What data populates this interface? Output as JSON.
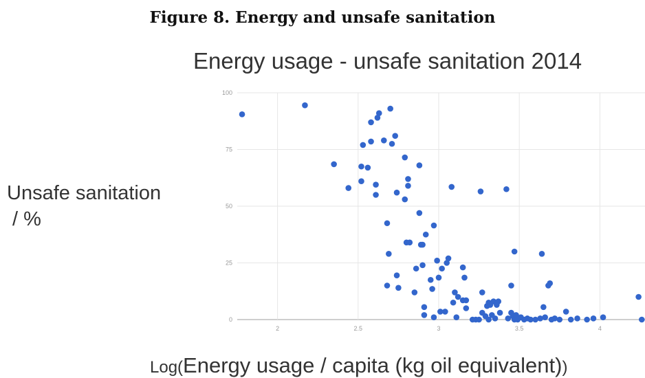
{
  "figure_caption": "Figure 8. Energy and unsafe sanitation",
  "chart_data": {
    "type": "scatter",
    "title": "Energy usage - unsafe sanitation 2014",
    "ylabel": "Unsafe sanitation\n / %",
    "xlabel_prefix": "Log(",
    "xlabel": "Energy usage / capita (kg oil equivalent)",
    "xlabel_suffix": ")",
    "xlim": [
      1.75,
      4.28
    ],
    "ylim": [
      0,
      100
    ],
    "xticks": [
      2,
      2.5,
      3,
      3.5,
      4
    ],
    "xtick_labels": [
      "2",
      "2.5",
      "3",
      "3.5",
      "4"
    ],
    "yticks": [
      0,
      25,
      50,
      75,
      100
    ],
    "ytick_labels": [
      "0",
      "25",
      "50",
      "75",
      "100"
    ],
    "grid": true,
    "legend": "none",
    "point_color": "#3366cc",
    "points": [
      [
        1.78,
        90.5
      ],
      [
        2.17,
        94.5
      ],
      [
        2.35,
        68.5
      ],
      [
        2.44,
        58
      ],
      [
        2.52,
        67.5
      ],
      [
        2.52,
        61
      ],
      [
        2.53,
        77
      ],
      [
        2.56,
        67
      ],
      [
        2.58,
        87
      ],
      [
        2.58,
        78.5
      ],
      [
        2.61,
        59.5
      ],
      [
        2.61,
        55
      ],
      [
        2.62,
        89
      ],
      [
        2.63,
        91
      ],
      [
        2.66,
        79
      ],
      [
        2.68,
        42.5
      ],
      [
        2.68,
        15
      ],
      [
        2.69,
        29
      ],
      [
        2.7,
        93
      ],
      [
        2.71,
        77.5
      ],
      [
        2.73,
        81
      ],
      [
        2.74,
        56
      ],
      [
        2.74,
        19.5
      ],
      [
        2.75,
        14
      ],
      [
        2.79,
        71.5
      ],
      [
        2.79,
        53
      ],
      [
        2.8,
        34
      ],
      [
        2.81,
        62
      ],
      [
        2.81,
        59
      ],
      [
        2.82,
        34
      ],
      [
        2.85,
        12
      ],
      [
        2.86,
        22.5
      ],
      [
        2.88,
        68
      ],
      [
        2.88,
        47
      ],
      [
        2.89,
        33
      ],
      [
        2.9,
        33
      ],
      [
        2.9,
        24
      ],
      [
        2.91,
        5.5
      ],
      [
        2.91,
        2
      ],
      [
        2.92,
        37.5
      ],
      [
        2.95,
        17.5
      ],
      [
        2.96,
        13.5
      ],
      [
        2.97,
        41.5
      ],
      [
        2.97,
        1
      ],
      [
        2.99,
        26
      ],
      [
        3.0,
        18.5
      ],
      [
        3.01,
        3.5
      ],
      [
        3.02,
        22.5
      ],
      [
        3.04,
        3.5
      ],
      [
        3.05,
        25
      ],
      [
        3.06,
        27
      ],
      [
        3.08,
        58.5
      ],
      [
        3.09,
        7.5
      ],
      [
        3.1,
        12
      ],
      [
        3.11,
        1
      ],
      [
        3.12,
        10
      ],
      [
        3.15,
        8.5
      ],
      [
        3.15,
        23
      ],
      [
        3.16,
        18.5
      ],
      [
        3.17,
        8.5
      ],
      [
        3.17,
        5
      ],
      [
        3.21,
        0
      ],
      [
        3.23,
        0
      ],
      [
        3.25,
        0
      ],
      [
        3.26,
        56.5
      ],
      [
        3.27,
        12
      ],
      [
        3.27,
        3
      ],
      [
        3.29,
        1.5
      ],
      [
        3.3,
        6
      ],
      [
        3.31,
        7.5
      ],
      [
        3.31,
        0
      ],
      [
        3.32,
        6.5
      ],
      [
        3.33,
        2
      ],
      [
        3.34,
        8
      ],
      [
        3.35,
        0.5
      ],
      [
        3.36,
        6.5
      ],
      [
        3.37,
        8
      ],
      [
        3.38,
        3
      ],
      [
        3.42,
        57.5
      ],
      [
        3.43,
        0.5
      ],
      [
        3.45,
        15
      ],
      [
        3.45,
        3
      ],
      [
        3.46,
        1.5
      ],
      [
        3.47,
        30
      ],
      [
        3.47,
        0
      ],
      [
        3.48,
        2
      ],
      [
        3.49,
        0
      ],
      [
        3.51,
        1
      ],
      [
        3.53,
        0
      ],
      [
        3.55,
        0.5
      ],
      [
        3.57,
        0
      ],
      [
        3.6,
        0
      ],
      [
        3.63,
        0.5
      ],
      [
        3.64,
        29
      ],
      [
        3.65,
        5.5
      ],
      [
        3.66,
        1
      ],
      [
        3.68,
        15
      ],
      [
        3.69,
        16
      ],
      [
        3.7,
        0
      ],
      [
        3.72,
        0.5
      ],
      [
        3.75,
        0
      ],
      [
        3.79,
        3.5
      ],
      [
        3.82,
        0
      ],
      [
        3.86,
        0.5
      ],
      [
        3.92,
        0
      ],
      [
        3.96,
        0.5
      ],
      [
        4.02,
        1
      ],
      [
        4.24,
        10
      ],
      [
        4.26,
        0
      ]
    ]
  }
}
